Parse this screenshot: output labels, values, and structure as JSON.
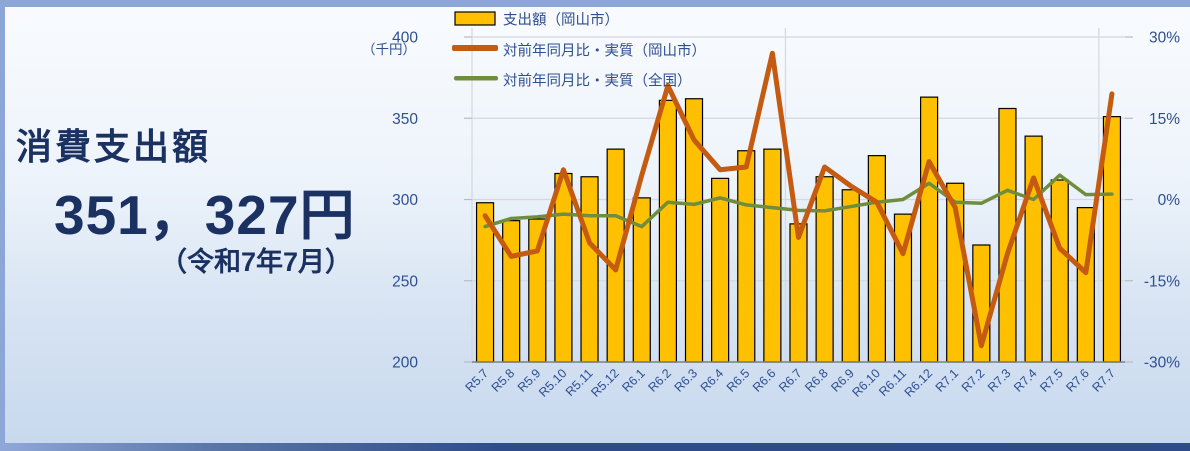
{
  "frame": {
    "top_color": "#8da6d8",
    "left_color": "#8da6d8",
    "bottom_gradient_left": "#8fa7d9",
    "bottom_gradient_right": "#2e4c8a",
    "background_top": "#f9fbfe",
    "background_bottom": "#c7d8ee"
  },
  "summary": {
    "title": "消費支出額",
    "amount": "351，327円",
    "period": "（令和7年7月）",
    "text_color": "#1a3161"
  },
  "chart_data": {
    "type": "combo",
    "unit_label": "（千円）",
    "categories": [
      "R5.7",
      "R5.8",
      "R5.9",
      "R5.10",
      "R5.11",
      "R5.12",
      "R6.1",
      "R6.2",
      "R6.3",
      "R6.4",
      "R6.5",
      "R6.6",
      "R6.7",
      "R6.8",
      "R6.9",
      "R6.10",
      "R6.11",
      "R6.12",
      "R7.1",
      "R7.2",
      "R7.3",
      "R7.4",
      "R7.5",
      "R7.6",
      "R7.7"
    ],
    "series": [
      {
        "name": "支出額（岡山市）",
        "chart_type": "bar",
        "axis": "left",
        "color": "#ffc000",
        "border_color": "#000000",
        "values": [
          298,
          287,
          288,
          316,
          314,
          331,
          301,
          361,
          362,
          313,
          330,
          331,
          285,
          314,
          306,
          327,
          291,
          363,
          310,
          272,
          356,
          339,
          312,
          295,
          351
        ]
      },
      {
        "name": "対前年同月比・実質（岡山市）",
        "chart_type": "line",
        "axis": "right",
        "color": "#c55a11",
        "values": [
          -3,
          -10.5,
          -9.5,
          5.5,
          -8,
          -13,
          4.5,
          21,
          11,
          5.5,
          6,
          27,
          -7,
          6,
          2.5,
          -0.5,
          -10,
          7,
          -1.5,
          -27,
          -10,
          4,
          -9,
          -13.5,
          19.5
        ]
      },
      {
        "name": "対前年同月比・実質（全国）",
        "chart_type": "line",
        "axis": "right",
        "color": "#6e8e3e",
        "values": [
          -5,
          -3.5,
          -3.2,
          -2.7,
          -3,
          -3,
          -5,
          -0.5,
          -0.9,
          0.3,
          -1,
          -1.5,
          -2,
          -2.1,
          -1.3,
          -0.5,
          0,
          3,
          -0.5,
          -0.7,
          1.7,
          0,
          4.5,
          0.9,
          1
        ]
      }
    ],
    "left_axis": {
      "min": 200,
      "max": 400,
      "ticks": [
        "400",
        "350",
        "300",
        "250",
        "200"
      ]
    },
    "right_axis": {
      "min": -30,
      "max": 30,
      "ticks": [
        "30%",
        "15%",
        "0%",
        "-15%",
        "-30%"
      ]
    },
    "legend_position": "top-left",
    "gridlines": {
      "horizontal": true,
      "vertical_year_boundaries": true
    },
    "axis_text_color": "#2f4f93",
    "gridline_color": "#d6d8dc",
    "axis_line_color": "#7f7f7f"
  }
}
